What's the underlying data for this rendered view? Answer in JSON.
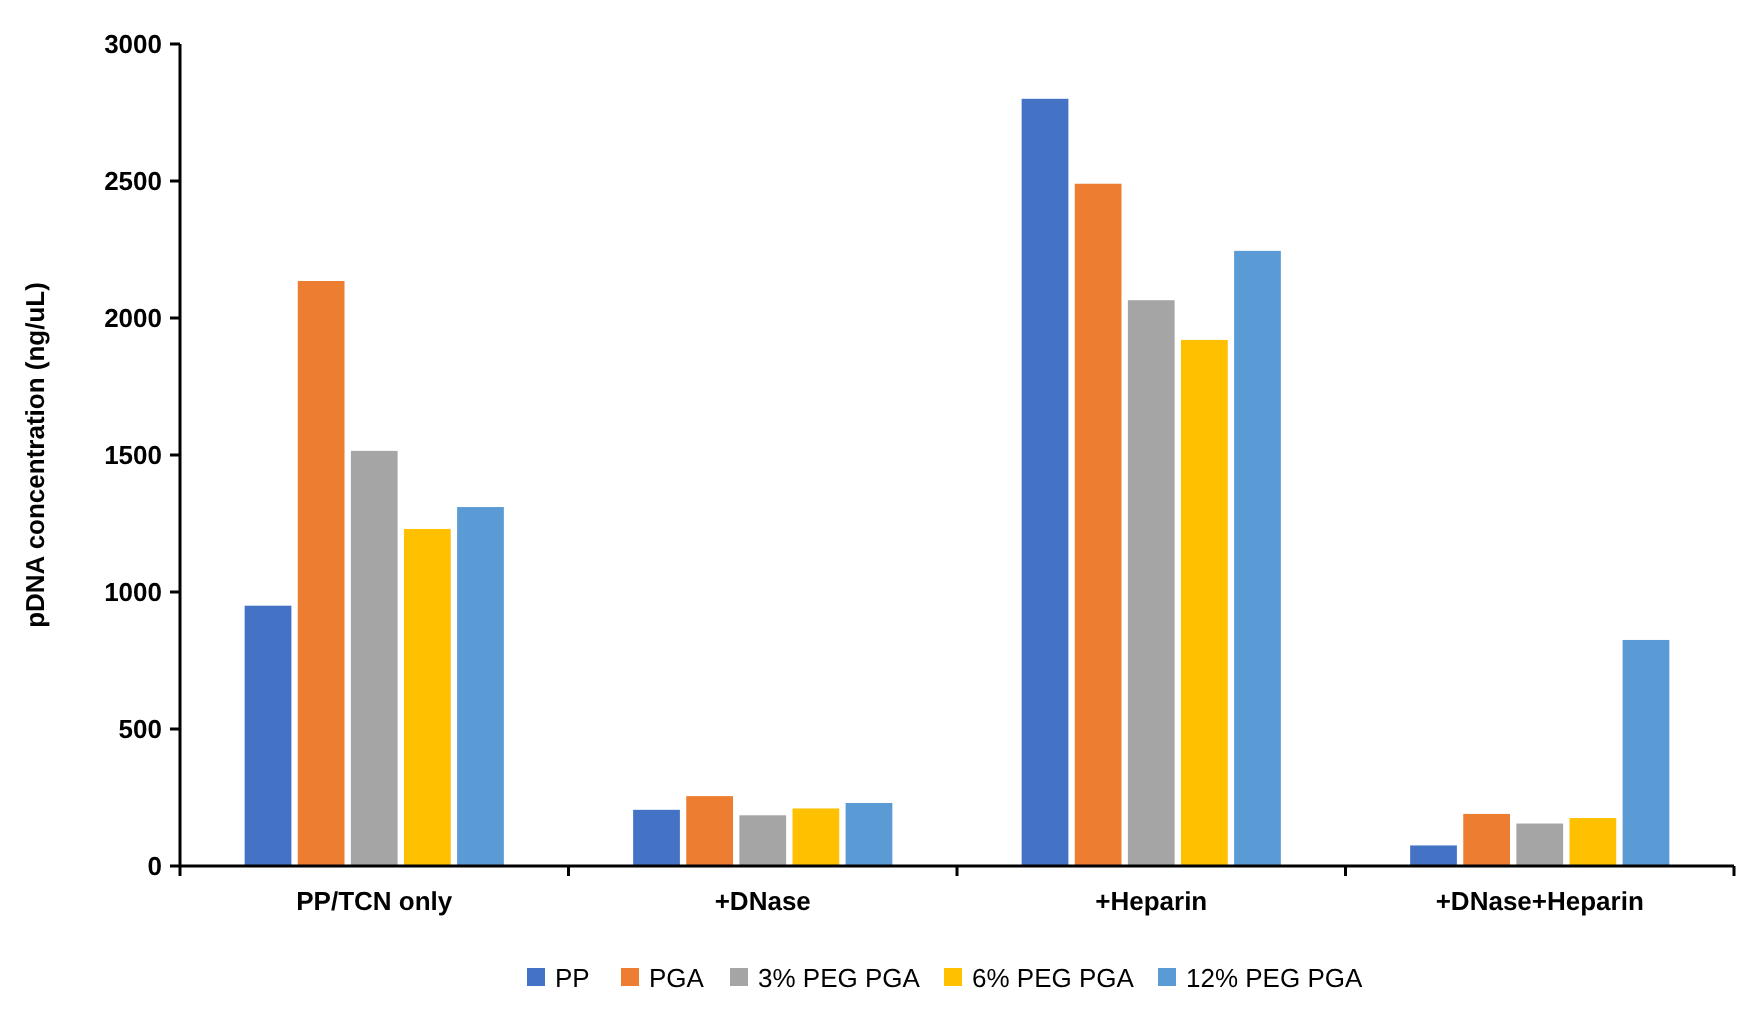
{
  "chart_data": {
    "type": "bar",
    "ylabel": "pDNA concentration (ng/uL)",
    "categories": [
      "PP/TCN only",
      "+DNase",
      "+Heparin",
      "+DNase+Heparin"
    ],
    "series": [
      {
        "name": "PP",
        "color": "#4472c4",
        "values": [
          950,
          205,
          2800,
          75
        ]
      },
      {
        "name": "PGA",
        "color": "#ed7d31",
        "values": [
          2135,
          255,
          2490,
          190
        ]
      },
      {
        "name": "3% PEG PGA",
        "color": "#a5a5a5",
        "values": [
          1515,
          185,
          2065,
          155
        ]
      },
      {
        "name": "6% PEG PGA",
        "color": "#ffc000",
        "values": [
          1230,
          210,
          1920,
          175
        ]
      },
      {
        "name": "12% PEG PGA",
        "color": "#5b9bd5",
        "values": [
          1310,
          230,
          2245,
          825
        ]
      }
    ],
    "ylim": [
      0,
      3000
    ],
    "yticks": [
      0,
      500,
      1000,
      1500,
      2000,
      2500,
      3000
    ],
    "grid": false,
    "legend": "bottom"
  }
}
